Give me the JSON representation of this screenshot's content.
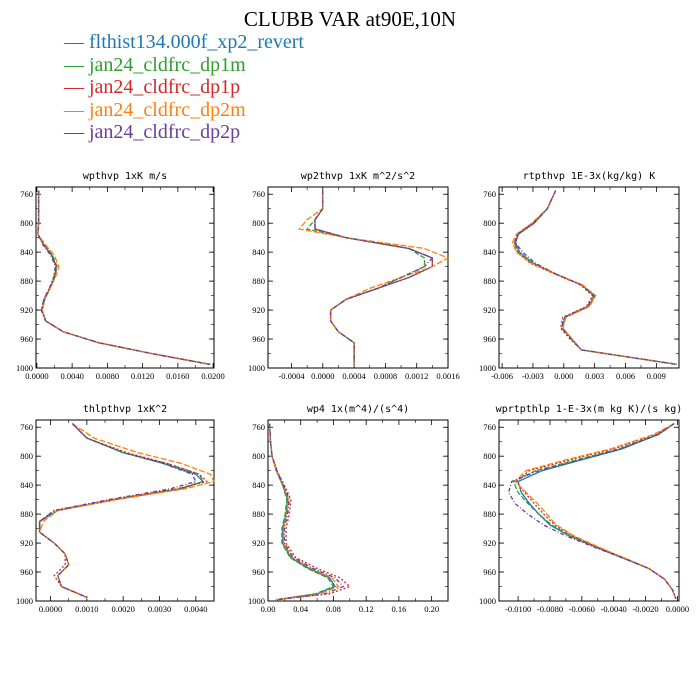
{
  "title": "CLUBB VAR at90E,10N",
  "legend": [
    {
      "label": "flthist134.000f_xp2_revert",
      "color": "#1f77b4"
    },
    {
      "label": "jan24_cldfrc_dp1m",
      "color": "#2ca02c"
    },
    {
      "label": "jan24_cldfrc_dp1p",
      "color": "#d62728"
    },
    {
      "label": "jan24_cldfrc_dp2m",
      "color": "#ff7f0e"
    },
    {
      "label": "jan24_cldfrc_dp2p",
      "color": "#6a3d9a"
    }
  ],
  "chart_data": [
    {
      "type": "line",
      "title": "wpthvp  1xK m/s",
      "xlim": [
        -0.0001,
        0.0201
      ],
      "ylim": [
        1000,
        750
      ],
      "xticks": [
        "0.0000",
        "0.0040",
        "0.0080",
        "0.0120",
        "0.0160",
        "0.0200"
      ],
      "xtick_values": [
        0,
        0.004,
        0.008,
        0.012,
        0.016,
        0.02
      ],
      "yticks": [
        "760",
        "800",
        "840",
        "880",
        "920",
        "960",
        "1000"
      ],
      "y": [
        755,
        780,
        800,
        815,
        830,
        845,
        860,
        875,
        890,
        905,
        920,
        935,
        950,
        965,
        980,
        995
      ],
      "series": [
        {
          "values": [
            0.0002,
            0.0002,
            0.0002,
            0.0001,
            0.0008,
            0.0017,
            0.0022,
            0.002,
            0.0015,
            0.0009,
            0.0006,
            0.001,
            0.003,
            0.007,
            0.013,
            0.0196
          ]
        },
        {
          "values": [
            0.0002,
            0.0002,
            0.0002,
            0.0001,
            0.0009,
            0.0018,
            0.0023,
            0.002,
            0.0015,
            0.0009,
            0.0006,
            0.001,
            0.003,
            0.007,
            0.013,
            0.0196
          ]
        },
        {
          "values": [
            0.0002,
            0.0002,
            0.0002,
            0.0001,
            0.0008,
            0.0017,
            0.0022,
            0.0019,
            0.0014,
            0.0008,
            0.0005,
            0.001,
            0.003,
            0.007,
            0.013,
            0.0197
          ]
        },
        {
          "values": [
            0.0002,
            0.0002,
            0.0002,
            0.0001,
            0.001,
            0.002,
            0.0025,
            0.0021,
            0.0015,
            0.0009,
            0.0006,
            0.001,
            0.003,
            0.007,
            0.013,
            0.0196
          ]
        },
        {
          "values": [
            0.0002,
            0.0002,
            0.0002,
            0.0001,
            0.0007,
            0.0016,
            0.0021,
            0.0019,
            0.0014,
            0.0008,
            0.0005,
            0.001,
            0.003,
            0.007,
            0.013,
            0.0197
          ]
        }
      ]
    },
    {
      "type": "line",
      "title": "wp2thvp  1xK m^2/s^2",
      "xlim": [
        -0.0007,
        0.0016
      ],
      "ylim": [
        1000,
        750
      ],
      "xticks": [
        "-0.0004",
        "0.0000",
        "0.0004",
        "0.0008",
        "0.0012",
        "0.0016"
      ],
      "xtick_values": [
        -0.0004,
        0,
        0.0004,
        0.0008,
        0.0012,
        0.0016
      ],
      "yticks": [
        "760",
        "800",
        "840",
        "880",
        "920",
        "960",
        "1000"
      ],
      "y": [
        755,
        780,
        795,
        808,
        820,
        835,
        848,
        860,
        875,
        890,
        905,
        920,
        935,
        950,
        965,
        980,
        995
      ],
      "series": [
        {
          "values": [
            0.0,
            0.0,
            -0.0001,
            -0.0001,
            0.0003,
            0.0011,
            0.0014,
            0.0014,
            0.0011,
            0.0007,
            0.0003,
            0.0001,
            0.0001,
            0.0002,
            0.0004,
            0.0004,
            0.0004
          ]
        },
        {
          "values": [
            0.0,
            0.0,
            -0.0001,
            -0.0002,
            0.0003,
            0.0011,
            0.0013,
            0.0013,
            0.001,
            0.0007,
            0.0003,
            0.0001,
            0.0001,
            0.0002,
            0.0004,
            0.0004,
            0.0004
          ]
        },
        {
          "values": [
            0.0,
            0.0,
            -0.0001,
            -0.0001,
            0.0003,
            0.0011,
            0.0014,
            0.0014,
            0.0011,
            0.0007,
            0.0003,
            0.0001,
            0.0001,
            0.0002,
            0.0004,
            0.0004,
            0.0004
          ]
        },
        {
          "values": [
            0.0,
            0.0,
            -0.0002,
            -0.0003,
            0.0003,
            0.0013,
            0.0016,
            0.0014,
            0.001,
            0.0006,
            0.0003,
            0.0001,
            0.0001,
            0.0002,
            0.0004,
            0.0004,
            0.0004
          ]
        },
        {
          "values": [
            0.0,
            0.0,
            -0.0001,
            -0.0001,
            0.0003,
            0.0011,
            0.0014,
            0.0013,
            0.001,
            0.0007,
            0.0003,
            0.0001,
            0.0001,
            0.0002,
            0.0004,
            0.0004,
            0.0004
          ]
        }
      ]
    },
    {
      "type": "line",
      "title": "rtpthvp  1E-3x(kg/kg) K",
      "xlim": [
        -0.0063,
        0.0112
      ],
      "ylim": [
        1000,
        750
      ],
      "xticks": [
        "-0.006",
        "-0.003",
        "0.000",
        "0.003",
        "0.006",
        "0.009"
      ],
      "xtick_values": [
        -0.006,
        -0.003,
        0,
        0.003,
        0.006,
        0.009
      ],
      "yticks": [
        "760",
        "800",
        "840",
        "880",
        "920",
        "960",
        "1000"
      ],
      "y": [
        755,
        780,
        800,
        815,
        827,
        840,
        855,
        870,
        885,
        900,
        915,
        930,
        945,
        960,
        975,
        995
      ],
      "series": [
        {
          "values": [
            -0.0008,
            -0.0016,
            -0.0029,
            -0.0044,
            -0.0047,
            -0.0043,
            -0.003,
            -0.0008,
            0.0017,
            0.003,
            0.0024,
            0.0001,
            -0.0001,
            0.0008,
            0.0017,
            0.011
          ]
        },
        {
          "values": [
            -0.0008,
            -0.0016,
            -0.003,
            -0.0045,
            -0.0048,
            -0.0044,
            -0.0031,
            -0.0008,
            0.0017,
            0.003,
            0.0024,
            0.0001,
            -0.0002,
            0.0008,
            0.0017,
            0.011
          ]
        },
        {
          "values": [
            -0.0008,
            -0.0016,
            -0.0029,
            -0.0044,
            -0.0048,
            -0.0045,
            -0.0033,
            -0.0009,
            0.0016,
            0.0028,
            0.0022,
            -0.0001,
            -0.0003,
            0.0006,
            0.0017,
            0.011
          ]
        },
        {
          "values": [
            -0.0008,
            -0.0016,
            -0.0031,
            -0.0046,
            -0.005,
            -0.0046,
            -0.0032,
            -0.0008,
            0.0018,
            0.0031,
            0.0025,
            0.0002,
            -0.0001,
            0.0008,
            0.0017,
            0.011
          ]
        },
        {
          "values": [
            -0.0008,
            -0.0016,
            -0.003,
            -0.0045,
            -0.0047,
            -0.004,
            -0.0028,
            -0.0008,
            0.0016,
            0.0029,
            0.0023,
            0.0,
            -0.0002,
            0.0007,
            0.0017,
            0.011
          ]
        }
      ]
    },
    {
      "type": "line",
      "title": "thlpthvp  1xK^2",
      "xlim": [
        -0.0004,
        0.0045
      ],
      "ylim": [
        1000,
        750
      ],
      "xticks": [
        "0.0000",
        "0.0010",
        "0.0020",
        "0.0030",
        "0.0040"
      ],
      "xtick_values": [
        0,
        0.001,
        0.002,
        0.003,
        0.004
      ],
      "yticks": [
        "760",
        "800",
        "840",
        "880",
        "920",
        "960",
        "1000"
      ],
      "y": [
        755,
        775,
        795,
        810,
        825,
        835,
        845,
        860,
        875,
        890,
        905,
        920,
        935,
        950,
        965,
        980,
        995
      ],
      "series": [
        {
          "values": [
            0.0006,
            0.001,
            0.002,
            0.0031,
            0.004,
            0.0042,
            0.0036,
            0.0018,
            0.0002,
            -0.0003,
            -0.0003,
            0.0001,
            0.0004,
            0.0005,
            0.0002,
            0.0003,
            0.001
          ]
        },
        {
          "values": [
            0.0006,
            0.001,
            0.002,
            0.0032,
            0.0041,
            0.0042,
            0.0035,
            0.0017,
            0.0002,
            -0.0003,
            -0.0003,
            0.0001,
            0.0004,
            0.0005,
            0.0002,
            0.0003,
            0.001
          ]
        },
        {
          "values": [
            0.0006,
            0.001,
            0.0021,
            0.0032,
            0.0041,
            0.0043,
            0.0035,
            0.0017,
            0.0001,
            -0.0003,
            -0.0003,
            0.0001,
            0.0004,
            0.0004,
            0.0001,
            0.0003,
            0.001
          ]
        },
        {
          "values": [
            0.0006,
            0.0012,
            0.0024,
            0.0036,
            0.0044,
            0.0045,
            0.0037,
            0.0018,
            0.0002,
            -0.0002,
            -0.0003,
            0.0001,
            0.0004,
            0.0005,
            0.0002,
            0.0003,
            0.001
          ]
        },
        {
          "values": [
            0.0006,
            0.001,
            0.002,
            0.0031,
            0.0039,
            0.004,
            0.0033,
            0.0016,
            0.0001,
            -0.0003,
            -0.0003,
            0.0001,
            0.0004,
            0.0005,
            0.0002,
            0.0003,
            0.001
          ]
        }
      ]
    },
    {
      "type": "line",
      "title": "wp4  1x(m^4)/(s^4)",
      "xlim": [
        0,
        0.22
      ],
      "ylim": [
        1000,
        750
      ],
      "xticks": [
        "0.00",
        "0.04",
        "0.08",
        "0.12",
        "0.16",
        "0.20"
      ],
      "xtick_values": [
        0,
        0.04,
        0.08,
        0.12,
        0.16,
        0.2
      ],
      "yticks": [
        "760",
        "800",
        "840",
        "880",
        "920",
        "960",
        "1000"
      ],
      "y": [
        755,
        780,
        800,
        820,
        840,
        860,
        880,
        900,
        920,
        940,
        955,
        968,
        980,
        990,
        998
      ],
      "series": [
        {
          "values": [
            0.002,
            0.003,
            0.005,
            0.01,
            0.018,
            0.024,
            0.022,
            0.018,
            0.018,
            0.028,
            0.05,
            0.075,
            0.082,
            0.06,
            0.01
          ]
        },
        {
          "values": [
            0.002,
            0.003,
            0.005,
            0.01,
            0.018,
            0.023,
            0.021,
            0.017,
            0.017,
            0.027,
            0.048,
            0.073,
            0.08,
            0.058,
            0.01
          ]
        },
        {
          "values": [
            0.002,
            0.003,
            0.005,
            0.011,
            0.02,
            0.028,
            0.026,
            0.022,
            0.022,
            0.034,
            0.06,
            0.088,
            0.1,
            0.075,
            0.012
          ]
        },
        {
          "values": [
            0.002,
            0.003,
            0.005,
            0.01,
            0.019,
            0.025,
            0.023,
            0.019,
            0.019,
            0.03,
            0.053,
            0.078,
            0.086,
            0.064,
            0.011
          ]
        },
        {
          "values": [
            0.002,
            0.003,
            0.005,
            0.011,
            0.019,
            0.026,
            0.024,
            0.02,
            0.02,
            0.031,
            0.055,
            0.082,
            0.092,
            0.07,
            0.012
          ]
        }
      ]
    },
    {
      "type": "line",
      "title": "wprtpthlp  1-E-3x(m kg K)/(s kg)",
      "xlim": [
        -0.0112,
        0.0001
      ],
      "ylim": [
        1000,
        750
      ],
      "xticks": [
        "-0.0100",
        "-0.0080",
        "-0.0060",
        "-0.0040",
        "-0.0020",
        "0.0000"
      ],
      "xtick_values": [
        -0.01,
        -0.008,
        -0.006,
        -0.004,
        -0.002,
        0
      ],
      "yticks": [
        "760",
        "800",
        "840",
        "880",
        "920",
        "960",
        "1000"
      ],
      "y": [
        755,
        770,
        790,
        805,
        820,
        835,
        850,
        865,
        880,
        895,
        910,
        925,
        940,
        955,
        970,
        985,
        997
      ],
      "series": [
        {
          "values": [
            -0.0002,
            -0.0012,
            -0.0035,
            -0.006,
            -0.0085,
            -0.01,
            -0.0098,
            -0.0093,
            -0.0087,
            -0.008,
            -0.0068,
            -0.0052,
            -0.0035,
            -0.0018,
            -0.0008,
            -0.0003,
            -0.0001
          ]
        },
        {
          "values": [
            -0.0002,
            -0.0013,
            -0.0037,
            -0.0063,
            -0.0089,
            -0.0103,
            -0.01,
            -0.0094,
            -0.0087,
            -0.0079,
            -0.0067,
            -0.0051,
            -0.0034,
            -0.0018,
            -0.0008,
            -0.0003,
            -0.0001
          ]
        },
        {
          "values": [
            -0.0002,
            -0.0014,
            -0.004,
            -0.0067,
            -0.0093,
            -0.0101,
            -0.0096,
            -0.009,
            -0.0084,
            -0.0077,
            -0.0066,
            -0.0051,
            -0.0034,
            -0.0018,
            -0.0008,
            -0.0003,
            -0.0001
          ]
        },
        {
          "values": [
            -0.0002,
            -0.0015,
            -0.0042,
            -0.007,
            -0.0095,
            -0.0102,
            -0.0095,
            -0.0088,
            -0.0082,
            -0.0076,
            -0.0065,
            -0.005,
            -0.0034,
            -0.0018,
            -0.0008,
            -0.0003,
            -0.0001
          ]
        },
        {
          "values": [
            -0.0002,
            -0.0012,
            -0.0036,
            -0.0061,
            -0.0087,
            -0.0104,
            -0.0106,
            -0.0102,
            -0.0094,
            -0.0084,
            -0.007,
            -0.0053,
            -0.0035,
            -0.0018,
            -0.0008,
            -0.0003,
            -0.0001
          ]
        }
      ]
    }
  ]
}
